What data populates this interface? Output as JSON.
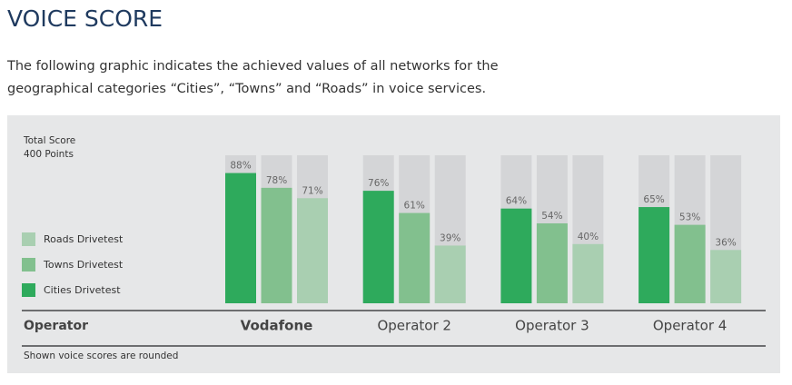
{
  "header": {
    "title": "VOICE SCORE",
    "description": [
      "The following graphic indicates the achieved values of all networks for the",
      "geographical categories “Cities”, “Towns” and “Roads” in voice services."
    ]
  },
  "chart_data": {
    "type": "bar",
    "ylabel_lines": [
      "Total Score",
      "400 Points"
    ],
    "x_label": "Operator",
    "note": "Shown voice scores are rounded",
    "categories": [
      "Vodafone",
      "Operator 2",
      "Operator 3",
      "Operator 4"
    ],
    "ylim": [
      0,
      100
    ],
    "series": [
      {
        "name": "Cities Drivetest",
        "color": "#2eaa5c",
        "values": [
          88,
          76,
          64,
          65
        ],
        "value_labels": [
          "88%",
          "76%",
          "64%",
          "65%"
        ]
      },
      {
        "name": "Towns Drivetest",
        "color": "#82c08e",
        "values": [
          78,
          61,
          54,
          53
        ],
        "value_labels": [
          "78%",
          "61%",
          "54%",
          "53%"
        ]
      },
      {
        "name": "Roads Drivetest",
        "color": "#a9cfb1",
        "values": [
          71,
          39,
          40,
          36
        ],
        "value_labels": [
          "71%",
          "39%",
          "40%",
          "36%"
        ]
      }
    ]
  }
}
